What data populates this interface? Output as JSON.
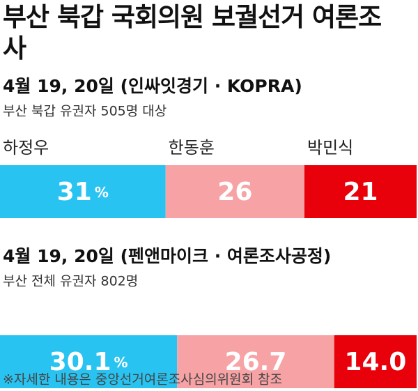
{
  "chart_data": {
    "type": "stacked-bar",
    "title": "부산 북갑 국회의원 보궐선거 여론조사",
    "categories": [
      "4월 19, 20일 (인싸잇경기 · KOPRA)",
      "4월 19, 20일 (펜앤마이크 · 여론조사공정)"
    ],
    "subtitles": [
      "부산 북갑 유권자 505명 대상",
      "부산 전체 유권자 802명"
    ],
    "series": [
      {
        "name": "하정우",
        "color": "#29c3f2",
        "values": [
          31,
          30.1
        ],
        "value_labels": [
          "31%",
          "30.1%"
        ]
      },
      {
        "name": "한동훈",
        "color": "#f7a3a5",
        "values": [
          26,
          26.7
        ],
        "value_labels": [
          "26",
          "26.7"
        ]
      },
      {
        "name": "박민식",
        "color": "#e8000b",
        "values": [
          21,
          14.0
        ],
        "value_labels": [
          "21",
          "14.0"
        ]
      }
    ],
    "note": "※자세한 내용은 중앙선거여론조사심의위원회 참조"
  }
}
